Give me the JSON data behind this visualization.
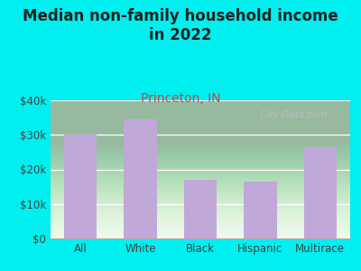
{
  "title": "Median non-family household income\nin 2022",
  "subtitle": "Princeton, IN",
  "categories": [
    "All",
    "White",
    "Black",
    "Hispanic",
    "Multirace"
  ],
  "values": [
    30000,
    34500,
    17000,
    16500,
    26500
  ],
  "bar_color": "#c0a8d8",
  "background_outer": "#00efef",
  "title_fontsize": 12,
  "subtitle_fontsize": 10,
  "subtitle_color": "#cc4444",
  "title_color": "#222222",
  "tick_color": "#444444",
  "ylim": [
    0,
    40000
  ],
  "yticks": [
    0,
    10000,
    20000,
    30000,
    40000
  ],
  "watermark": "  City-Data.com",
  "fig_width": 4.0,
  "fig_height": 3.0,
  "dpi": 100
}
